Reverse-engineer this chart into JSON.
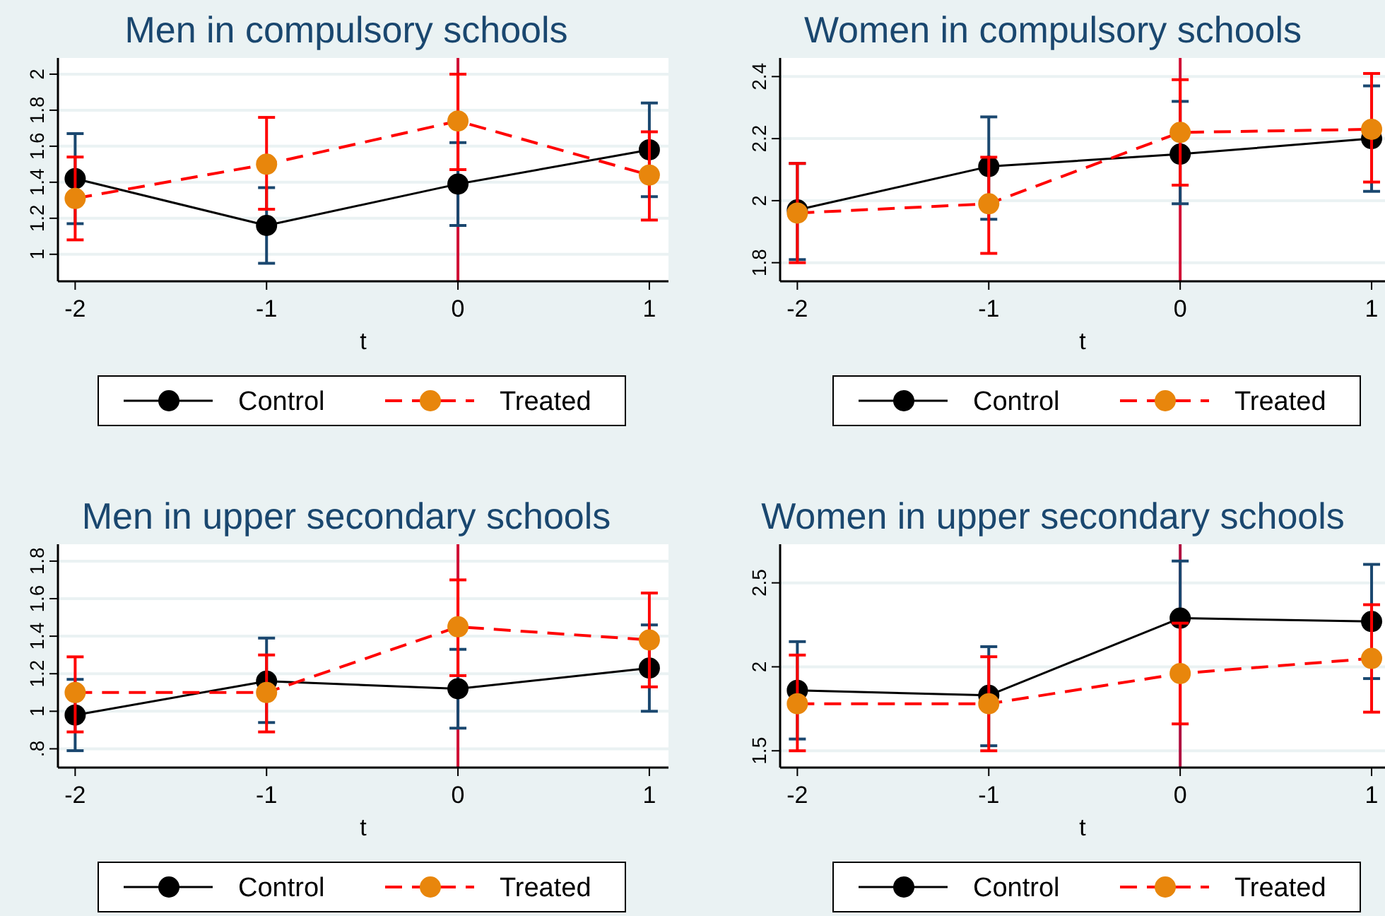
{
  "chart_data": [
    {
      "type": "line",
      "title": "Men in compulsory schools",
      "xlabel": "t",
      "x": [
        -2,
        -1,
        0,
        1
      ],
      "xlim": [
        -2.09,
        1.1
      ],
      "xticks": [
        -2,
        -1,
        0,
        1
      ],
      "ylim": [
        0.85,
        2.09
      ],
      "yticks": [
        {
          "value": 1,
          "label": "1"
        },
        1.2,
        1.4,
        1.6,
        1.8,
        {
          "value": 2,
          "label": "2"
        }
      ],
      "grid": "y",
      "legend": "bottom",
      "marker": "circle",
      "ref_lines": [
        {
          "axis": "x",
          "value": 0,
          "color": "#d01035"
        }
      ],
      "series": [
        {
          "name": "Control",
          "color": "#000000",
          "line_style": "solid",
          "values": [
            1.42,
            1.16,
            1.39,
            1.58
          ],
          "errors": [
            [
              1.17,
              1.67
            ],
            [
              0.95,
              1.37
            ],
            [
              1.16,
              1.62
            ],
            [
              1.32,
              1.84
            ]
          ]
        },
        {
          "name": "Treated",
          "color": "#ff0000",
          "line_style": "dashed",
          "colors": [
            "#e8860c",
            "#e8860c",
            "#e8860c",
            "#e8860c"
          ],
          "values": [
            1.31,
            1.5,
            1.74,
            1.44
          ],
          "errors": [
            [
              1.08,
              1.54
            ],
            [
              1.25,
              1.76
            ],
            [
              1.47,
              2.0
            ],
            [
              1.19,
              1.68
            ]
          ]
        }
      ]
    },
    {
      "type": "line",
      "title": "Women in compulsory schools",
      "xlabel": "t",
      "x": [
        -2,
        -1,
        0,
        1
      ],
      "xlim": [
        -2.09,
        1.07
      ],
      "xticks": [
        -2,
        -1,
        0,
        1
      ],
      "ylim": [
        1.74,
        2.46
      ],
      "yticks": [
        1.8,
        {
          "value": 2,
          "label": "2"
        },
        2.2,
        2.4
      ],
      "grid": "y",
      "legend": "bottom",
      "marker": "circle",
      "ref_lines": [
        {
          "axis": "x",
          "value": 0,
          "color": "#d01035"
        }
      ],
      "series": [
        {
          "name": "Control",
          "color": "#000000",
          "line_style": "solid",
          "values": [
            1.97,
            2.11,
            2.15,
            2.2
          ],
          "errors": [
            [
              1.81,
              2.12
            ],
            [
              1.94,
              2.27
            ],
            [
              1.99,
              2.32
            ],
            [
              2.03,
              2.37
            ]
          ]
        },
        {
          "name": "Treated",
          "color": "#ff0000",
          "line_style": "dashed",
          "colors": [
            "#e8860c",
            "#e8860c",
            "#e8860c",
            "#e8860c"
          ],
          "values": [
            1.96,
            1.99,
            2.22,
            2.23
          ],
          "errors": [
            [
              1.8,
              2.12
            ],
            [
              1.83,
              2.14
            ],
            [
              2.05,
              2.39
            ],
            [
              2.06,
              2.41
            ]
          ]
        }
      ]
    },
    {
      "type": "line",
      "title": "Men in upper secondary schools",
      "xlabel": "t",
      "x": [
        -2,
        -1,
        0,
        1
      ],
      "xlim": [
        -2.09,
        1.1
      ],
      "xticks": [
        -2,
        -1,
        0,
        1
      ],
      "ylim": [
        0.7,
        1.89
      ],
      "yticks": [
        {
          "value": 0.8,
          "label": ".8"
        },
        {
          "value": 1,
          "label": "1"
        },
        1.2,
        1.4,
        1.6,
        1.8
      ],
      "grid": "y",
      "legend": "bottom",
      "marker": "circle",
      "ref_lines": [
        {
          "axis": "x",
          "value": 0,
          "color": "#d01035"
        }
      ],
      "series": [
        {
          "name": "Control",
          "color": "#000000",
          "line_style": "solid",
          "values": [
            0.98,
            1.16,
            1.12,
            1.23
          ],
          "errors": [
            [
              0.79,
              1.17
            ],
            [
              0.94,
              1.39
            ],
            [
              0.91,
              1.33
            ],
            [
              1.0,
              1.46
            ]
          ]
        },
        {
          "name": "Treated",
          "color": "#ff0000",
          "line_style": "dashed",
          "colors": [
            "#e8860c",
            "#e8860c",
            "#e8860c",
            "#e8860c"
          ],
          "values": [
            1.1,
            1.1,
            1.45,
            1.38
          ],
          "errors": [
            [
              0.89,
              1.29
            ],
            [
              0.89,
              1.3
            ],
            [
              1.19,
              1.7
            ],
            [
              1.13,
              1.63
            ]
          ]
        }
      ]
    },
    {
      "type": "line",
      "title": "Women in upper secondary schools",
      "xlabel": "t",
      "x": [
        -2,
        -1,
        0,
        1
      ],
      "xlim": [
        -2.09,
        1.07
      ],
      "xticks": [
        -2,
        -1,
        0,
        1
      ],
      "ylim": [
        1.4,
        2.73
      ],
      "yticks": [
        1.5,
        {
          "value": 2,
          "label": "2"
        },
        2.5
      ],
      "grid": "y",
      "legend": "bottom",
      "marker": "circle",
      "ref_lines": [
        {
          "axis": "x",
          "value": 0,
          "color": "#b01040"
        }
      ],
      "series": [
        {
          "name": "Control",
          "color": "#000000",
          "line_style": "solid",
          "values": [
            1.86,
            1.83,
            2.29,
            2.27
          ],
          "errors": [
            [
              1.57,
              2.15
            ],
            [
              1.53,
              2.12
            ],
            [
              2.29,
              2.63
            ],
            [
              1.93,
              2.61
            ]
          ]
        },
        {
          "name": "Treated",
          "color": "#ff0000",
          "line_style": "dashed",
          "colors": [
            "#e8860c",
            "#e8860c",
            "#e8860c",
            "#e8860c"
          ],
          "values": [
            1.78,
            1.78,
            1.96,
            2.05
          ],
          "errors": [
            [
              1.5,
              2.07
            ],
            [
              1.5,
              2.06
            ],
            [
              1.66,
              2.26
            ],
            [
              1.73,
              2.37
            ]
          ]
        }
      ]
    }
  ]
}
